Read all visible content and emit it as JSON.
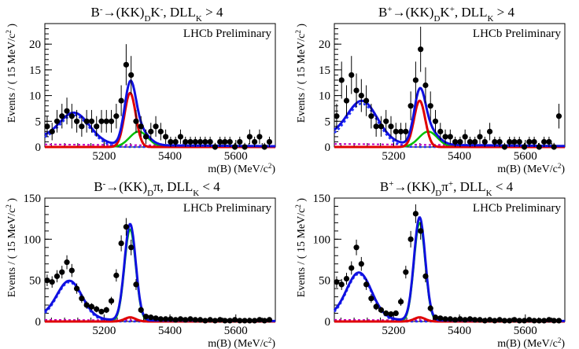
{
  "figure": {
    "panels": [
      {
        "title_main": "B",
        "title_sup1": "-",
        "title_mid": "→(KK)",
        "title_sub1": "D",
        "title_mid2": "K",
        "title_sup2": "-",
        "title_tail": ", DLL",
        "title_sub2": "K",
        "title_end": " > 4",
        "badge": "LHCb Preliminary",
        "ylabel": "Events / ( 15 MeV/c",
        "ylabel_sup": "2",
        "ylabel_end": " )",
        "xlabel": "m(B) (MeV/c",
        "xlabel_sup": "2",
        "xlabel_end": ")"
      },
      {
        "title_main": "B",
        "title_sup1": "+",
        "title_mid": "→(KK)",
        "title_sub1": "D",
        "title_mid2": "K",
        "title_sup2": "+",
        "title_tail": ", DLL",
        "title_sub2": "K",
        "title_end": " > 4",
        "badge": "LHCb Preliminary",
        "ylabel": "Events / ( 15 MeV/c",
        "ylabel_sup": "2",
        "ylabel_end": " )",
        "xlabel": "m(B) (MeV/c",
        "xlabel_sup": "2",
        "xlabel_end": ")"
      },
      {
        "title_main": "B",
        "title_sup1": "-",
        "title_mid": "→(KK)",
        "title_sub1": "D",
        "title_mid2": "π",
        "title_sup2": "",
        "title_tail": ", DLL",
        "title_sub2": "K",
        "title_end": " < 4",
        "badge": "LHCb Preliminary",
        "ylabel": "Events / ( 15 MeV/c",
        "ylabel_sup": "2",
        "ylabel_end": " )",
        "xlabel": "m(B) (MeV/c",
        "xlabel_sup": "2",
        "xlabel_end": ")"
      },
      {
        "title_main": "B",
        "title_sup1": "+",
        "title_mid": "→(KK)",
        "title_sub1": "D",
        "title_mid2": "π",
        "title_sup2": "+",
        "title_tail": ", DLL",
        "title_sub2": "K",
        "title_end": " < 4",
        "badge": "LHCb Preliminary",
        "ylabel": "Events / ( 15 MeV/c",
        "ylabel_sup": "2",
        "ylabel_end": " )",
        "xlabel": "m(B) (MeV/c",
        "xlabel_sup": "2",
        "xlabel_end": ")"
      }
    ]
  },
  "chart_data": [
    {
      "type": "scatter",
      "xlim": [
        5020,
        5720
      ],
      "ylim": [
        0,
        24
      ],
      "xticks": [
        5200,
        5400,
        5600
      ],
      "yticks": [
        0,
        5,
        10,
        15,
        20
      ],
      "colors": {
        "points": "#000000",
        "total": "#1010e0",
        "signal": "#e00000",
        "misid": "#00c000",
        "partreco": "#2030ff",
        "comb": "#c000c0"
      },
      "data_x": [
        5027,
        5042,
        5057,
        5072,
        5087,
        5102,
        5117,
        5132,
        5147,
        5162,
        5177,
        5192,
        5207,
        5222,
        5237,
        5252,
        5267,
        5282,
        5297,
        5312,
        5327,
        5342,
        5357,
        5372,
        5387,
        5402,
        5417,
        5432,
        5447,
        5462,
        5477,
        5492,
        5507,
        5522,
        5537,
        5552,
        5567,
        5582,
        5597,
        5612,
        5627,
        5642,
        5657,
        5672,
        5687,
        5702
      ],
      "data_y": [
        4,
        3,
        5,
        6,
        7,
        6,
        5,
        4,
        5,
        5,
        4,
        5,
        5,
        5,
        6,
        9,
        16,
        14,
        5,
        4,
        2,
        3,
        4,
        3,
        2,
        1,
        1,
        2,
        1,
        1,
        1,
        1,
        1,
        1,
        0,
        1,
        1,
        1,
        0,
        1,
        0,
        2,
        1,
        2,
        0,
        1
      ],
      "data_err": [
        2,
        1.7,
        2.2,
        2.4,
        2.6,
        2.4,
        2.2,
        2,
        2.2,
        2.2,
        2,
        2.2,
        2.2,
        2.2,
        2.4,
        3,
        4,
        3.7,
        2.2,
        2,
        1.4,
        1.7,
        2,
        1.7,
        1.4,
        1,
        1,
        1.4,
        1,
        1,
        1,
        1,
        1,
        1,
        0.8,
        1,
        1,
        1,
        0.8,
        1,
        0.8,
        1.4,
        1,
        1.4,
        0.8,
        1
      ],
      "peak": 5279,
      "sigma": 17,
      "sig_amp": 10.5,
      "misid_amp": 3,
      "misid_mean": 5305,
      "misid_sigma": 28,
      "pr_amp": 5.5,
      "pr_mean": 5110,
      "pr_sigma": 45,
      "pr_base": 1.2,
      "comb_level": 0.5,
      "comb_slope": -0.0005
    },
    {
      "type": "scatter",
      "xlim": [
        5020,
        5720
      ],
      "ylim": [
        0,
        24
      ],
      "xticks": [
        5200,
        5400,
        5600
      ],
      "yticks": [
        0,
        5,
        10,
        15,
        20
      ],
      "colors": {
        "points": "#000000",
        "total": "#1010e0",
        "signal": "#e00000",
        "misid": "#00c000",
        "partreco": "#2030ff",
        "comb": "#c000c0"
      },
      "data_x": [
        5027,
        5042,
        5057,
        5072,
        5087,
        5102,
        5117,
        5132,
        5147,
        5162,
        5177,
        5192,
        5207,
        5222,
        5237,
        5252,
        5267,
        5282,
        5297,
        5312,
        5327,
        5342,
        5357,
        5372,
        5387,
        5402,
        5417,
        5432,
        5447,
        5462,
        5477,
        5492,
        5507,
        5522,
        5537,
        5552,
        5567,
        5582,
        5597,
        5612,
        5627,
        5642,
        5657,
        5672,
        5687,
        5702
      ],
      "data_y": [
        6,
        13,
        9,
        14,
        11,
        10,
        9,
        6,
        4,
        4,
        5,
        4,
        3,
        3,
        3,
        8,
        13,
        19,
        12,
        8,
        5,
        3,
        2,
        2,
        1,
        1,
        2,
        1,
        1,
        2,
        1,
        3,
        1,
        1,
        0,
        1,
        1,
        1,
        0,
        1,
        1,
        0,
        1,
        1,
        0,
        6
      ],
      "data_err": [
        2.4,
        3.6,
        3,
        3.7,
        3.3,
        3.2,
        3,
        2.4,
        2,
        2,
        2.2,
        2,
        1.7,
        1.7,
        1.7,
        2.8,
        3.6,
        4.4,
        3.5,
        2.8,
        2.2,
        1.7,
        1.4,
        1.4,
        1,
        1,
        1.4,
        1,
        1,
        1.4,
        1,
        1.7,
        1,
        1,
        0.8,
        1,
        1,
        1,
        0.8,
        1,
        1,
        0.8,
        1,
        1,
        0.8,
        2.4
      ],
      "peak": 5279,
      "sigma": 17,
      "sig_amp": 9,
      "misid_amp": 3,
      "misid_mean": 5305,
      "misid_sigma": 28,
      "pr_amp": 7.5,
      "pr_mean": 5105,
      "pr_sigma": 45,
      "pr_base": 1.5,
      "comb_level": 0.6,
      "comb_slope": -0.0006
    },
    {
      "type": "scatter",
      "xlim": [
        5020,
        5720
      ],
      "ylim": [
        0,
        150
      ],
      "xticks": [
        5200,
        5400,
        5600
      ],
      "yticks": [
        0,
        50,
        100,
        150
      ],
      "colors": {
        "points": "#000000",
        "total": "#1010e0",
        "signal": "#e00000",
        "misid": "#00c000",
        "partreco": "#2030ff",
        "comb": "#c000c0"
      },
      "data_x": [
        5027,
        5042,
        5057,
        5072,
        5087,
        5102,
        5117,
        5132,
        5147,
        5162,
        5177,
        5192,
        5207,
        5222,
        5237,
        5252,
        5267,
        5282,
        5297,
        5312,
        5327,
        5342,
        5357,
        5372,
        5387,
        5402,
        5417,
        5432,
        5447,
        5462,
        5477,
        5492,
        5507,
        5522,
        5537,
        5552,
        5567,
        5582,
        5597,
        5612,
        5627,
        5642,
        5657,
        5672,
        5687,
        5702
      ],
      "data_y": [
        50,
        48,
        55,
        60,
        72,
        62,
        40,
        28,
        20,
        18,
        15,
        12,
        14,
        25,
        56,
        95,
        115,
        90,
        45,
        14,
        6,
        5,
        4,
        3,
        3,
        3,
        2,
        3,
        2,
        3,
        2,
        2,
        1,
        2,
        1,
        2,
        1,
        1,
        2,
        1,
        1,
        1,
        1,
        2,
        1,
        2
      ],
      "data_err": [
        7,
        7,
        7.4,
        7.7,
        8.5,
        7.9,
        6.3,
        5.3,
        4.5,
        4.2,
        3.9,
        3.5,
        3.7,
        5,
        7.5,
        9.7,
        10.7,
        9.5,
        6.7,
        3.7,
        2.4,
        2.2,
        2,
        1.7,
        1.7,
        1.7,
        1.4,
        1.7,
        1.4,
        1.7,
        1.4,
        1.4,
        1,
        1.4,
        1,
        1.4,
        1,
        1,
        1.4,
        1,
        1,
        1,
        1,
        1.4,
        1,
        1.4
      ],
      "peak": 5279,
      "sigma": 17,
      "sig_amp": 5,
      "misid_amp": 112,
      "misid_mean": 5279,
      "misid_sigma": 17,
      "pr_amp": 45,
      "pr_mean": 5095,
      "pr_sigma": 38,
      "pr_base": 4,
      "comb_level": 2,
      "comb_slope": -0.002
    },
    {
      "type": "scatter",
      "xlim": [
        5020,
        5720
      ],
      "ylim": [
        0,
        150
      ],
      "xticks": [
        5200,
        5400,
        5600
      ],
      "yticks": [
        0,
        50,
        100,
        150
      ],
      "colors": {
        "points": "#000000",
        "total": "#1010e0",
        "signal": "#e00000",
        "misid": "#00c000",
        "partreco": "#2030ff",
        "comb": "#c000c0"
      },
      "data_x": [
        5027,
        5042,
        5057,
        5072,
        5087,
        5102,
        5117,
        5132,
        5147,
        5162,
        5177,
        5192,
        5207,
        5222,
        5237,
        5252,
        5267,
        5282,
        5297,
        5312,
        5327,
        5342,
        5357,
        5372,
        5387,
        5402,
        5417,
        5432,
        5447,
        5462,
        5477,
        5492,
        5507,
        5522,
        5537,
        5552,
        5567,
        5582,
        5597,
        5612,
        5627,
        5642,
        5657,
        5672,
        5687,
        5702
      ],
      "data_y": [
        48,
        45,
        52,
        65,
        90,
        70,
        45,
        28,
        18,
        14,
        10,
        9,
        10,
        24,
        60,
        100,
        131,
        110,
        55,
        16,
        5,
        4,
        3,
        3,
        2,
        3,
        2,
        3,
        2,
        2,
        1,
        2,
        1,
        2,
        1,
        1,
        2,
        1,
        1,
        2,
        1,
        1,
        1,
        2,
        1,
        1
      ],
      "data_err": [
        6.9,
        6.7,
        7.2,
        8.1,
        9.5,
        8.4,
        6.7,
        5.3,
        4.2,
        3.7,
        3.2,
        3,
        3.2,
        4.9,
        7.7,
        10,
        11.4,
        10.5,
        7.4,
        4,
        2.2,
        2,
        1.7,
        1.7,
        1.4,
        1.7,
        1.4,
        1.7,
        1.4,
        1.4,
        1,
        1.4,
        1,
        1.4,
        1,
        1,
        1.4,
        1,
        1,
        1.4,
        1,
        1,
        1,
        1.4,
        1,
        1
      ],
      "peak": 5279,
      "sigma": 17,
      "sig_amp": 5,
      "misid_amp": 120,
      "misid_mean": 5279,
      "misid_sigma": 17,
      "pr_amp": 55,
      "pr_mean": 5095,
      "pr_sigma": 38,
      "pr_base": 4,
      "comb_level": 2,
      "comb_slope": -0.002
    }
  ]
}
